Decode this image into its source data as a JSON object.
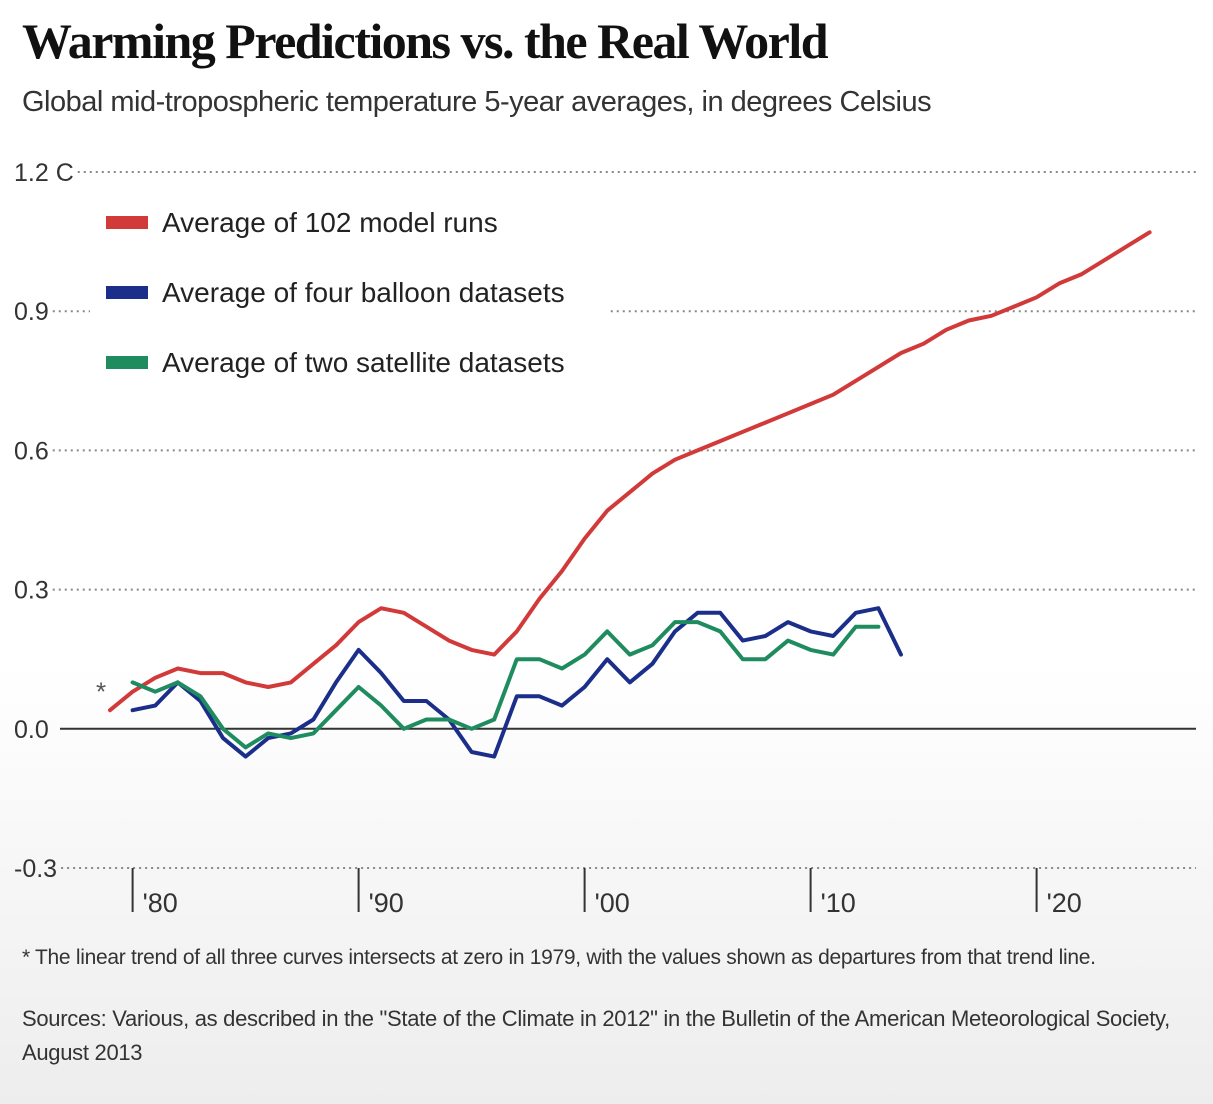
{
  "title": "Warming Predictions vs. the Real World",
  "subtitle": "Global mid-tropospheric temperature 5-year averages, in degrees Celsius",
  "footnote": "* The linear trend of all three curves intersects at zero in 1979, with the values shown as departures from that trend line.",
  "sources": "Sources: Various, as described in the \"State of the Climate in 2012\" in the Bulletin of the American Meteorological Society, August 2013",
  "chart_data": {
    "type": "line",
    "title": "Warming Predictions vs. the Real World",
    "subtitle": "Global mid-tropospheric temperature 5-year averages, in degrees Celsius",
    "ylim": [
      -0.3,
      1.2
    ],
    "yticks": [
      {
        "value": 1.2,
        "label": "1.2 C"
      },
      {
        "value": 0.9,
        "label": "0.9"
      },
      {
        "value": 0.6,
        "label": "0.6"
      },
      {
        "value": 0.3,
        "label": "0.3"
      },
      {
        "value": 0.0,
        "label": "0.0"
      },
      {
        "value": -0.3,
        "label": "-0.3"
      }
    ],
    "xlim": [
      1979,
      2025
    ],
    "xticks": [
      {
        "value": 1980,
        "label": "'80"
      },
      {
        "value": 1990,
        "label": "'90"
      },
      {
        "value": 2000,
        "label": "'00"
      },
      {
        "value": 2010,
        "label": "'10"
      },
      {
        "value": 2020,
        "label": "'20"
      }
    ],
    "grid": true,
    "legend_position": "top-left",
    "annotation": {
      "label": "*",
      "x": 1979,
      "y": 0.07
    },
    "series": [
      {
        "name": "Average of 102 model runs",
        "color": "#d23a3a",
        "x": [
          1979,
          1980,
          1981,
          1982,
          1983,
          1984,
          1985,
          1986,
          1987,
          1988,
          1989,
          1990,
          1991,
          1992,
          1993,
          1994,
          1995,
          1996,
          1997,
          1998,
          1999,
          2000,
          2001,
          2002,
          2003,
          2004,
          2005,
          2006,
          2007,
          2008,
          2009,
          2010,
          2011,
          2012,
          2013,
          2014,
          2015,
          2016,
          2017,
          2018,
          2019,
          2020,
          2021,
          2022,
          2023,
          2024,
          2025
        ],
        "y": [
          0.04,
          0.08,
          0.11,
          0.13,
          0.12,
          0.12,
          0.1,
          0.09,
          0.1,
          0.14,
          0.18,
          0.23,
          0.26,
          0.25,
          0.22,
          0.19,
          0.17,
          0.16,
          0.21,
          0.28,
          0.34,
          0.41,
          0.47,
          0.51,
          0.55,
          0.58,
          0.6,
          0.62,
          0.64,
          0.66,
          0.68,
          0.7,
          0.72,
          0.75,
          0.78,
          0.81,
          0.83,
          0.86,
          0.88,
          0.89,
          0.91,
          0.93,
          0.96,
          0.98,
          1.01,
          1.04,
          1.07
        ]
      },
      {
        "name": "Average of four balloon datasets",
        "color": "#1b2f8a",
        "x": [
          1980,
          1981,
          1982,
          1983,
          1984,
          1985,
          1986,
          1987,
          1988,
          1989,
          1990,
          1991,
          1992,
          1993,
          1994,
          1995,
          1996,
          1997,
          1998,
          1999,
          2000,
          2001,
          2002,
          2003,
          2004,
          2005,
          2006,
          2007,
          2008,
          2009,
          2010,
          2011,
          2012,
          2013,
          2014
        ],
        "y": [
          0.04,
          0.05,
          0.1,
          0.06,
          -0.02,
          -0.06,
          -0.02,
          -0.01,
          0.02,
          0.1,
          0.17,
          0.12,
          0.06,
          0.06,
          0.02,
          -0.05,
          -0.06,
          0.07,
          0.07,
          0.05,
          0.09,
          0.15,
          0.1,
          0.14,
          0.21,
          0.25,
          0.25,
          0.19,
          0.2,
          0.23,
          0.21,
          0.2,
          0.25,
          0.26,
          0.16
        ]
      },
      {
        "name": "Average of two satellite datasets",
        "color": "#1e8c5e",
        "x": [
          1980,
          1981,
          1982,
          1983,
          1984,
          1985,
          1986,
          1987,
          1988,
          1989,
          1990,
          1991,
          1992,
          1993,
          1994,
          1995,
          1996,
          1997,
          1998,
          1999,
          2000,
          2001,
          2002,
          2003,
          2004,
          2005,
          2006,
          2007,
          2008,
          2009,
          2010,
          2011,
          2012,
          2013
        ],
        "y": [
          0.1,
          0.08,
          0.1,
          0.07,
          0.0,
          -0.04,
          -0.01,
          -0.02,
          -0.01,
          0.04,
          0.09,
          0.05,
          0.0,
          0.02,
          0.02,
          0.0,
          0.02,
          0.15,
          0.15,
          0.13,
          0.16,
          0.21,
          0.16,
          0.18,
          0.23,
          0.23,
          0.21,
          0.15,
          0.15,
          0.19,
          0.17,
          0.16,
          0.22,
          0.22
        ]
      }
    ]
  }
}
